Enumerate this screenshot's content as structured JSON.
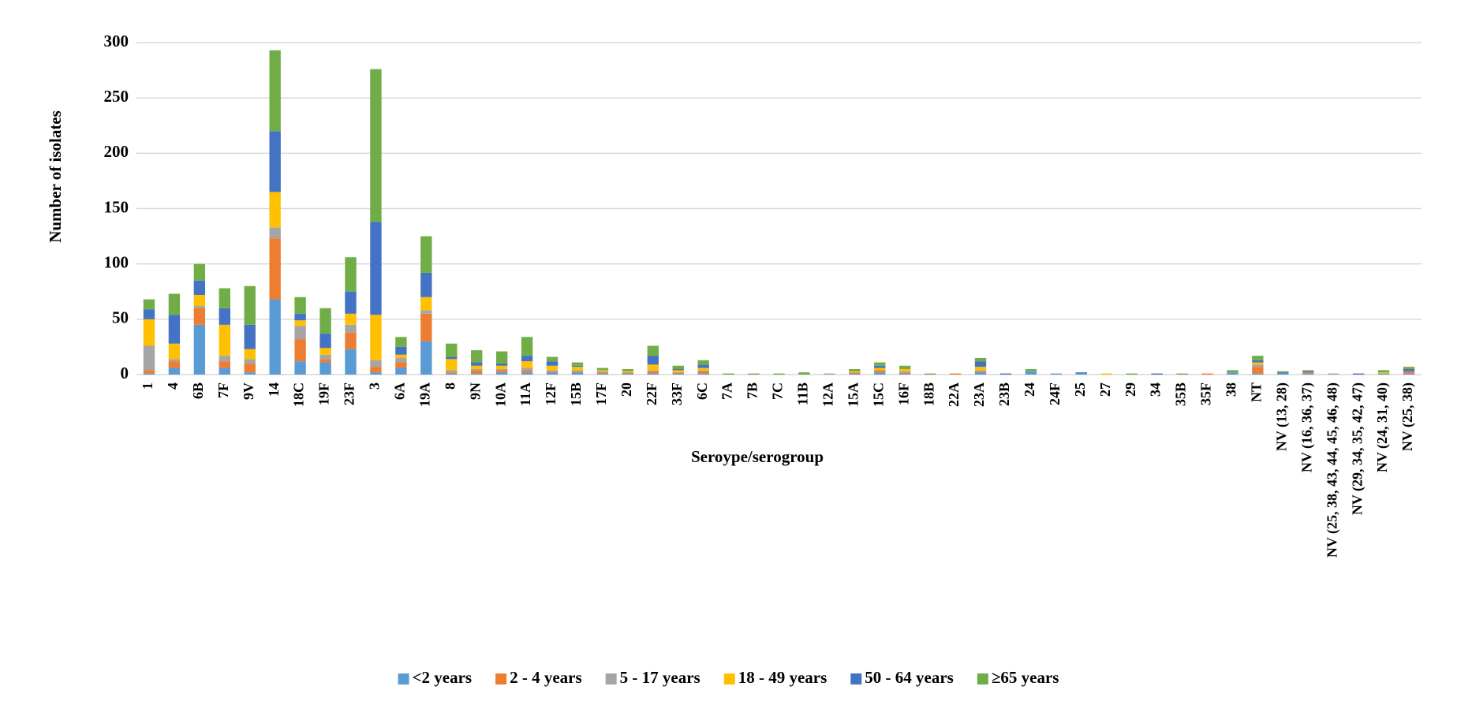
{
  "chart_data": {
    "type": "bar",
    "stacked": true,
    "x_label": "Seroype/serogroup",
    "y_label": "Number  of isolates",
    "categories": [
      "1",
      "4",
      "6B",
      "7F",
      "9V",
      "14",
      "18C",
      "19F",
      "23F",
      "3",
      "6A",
      "19A",
      "8",
      "9N",
      "10A",
      "11A",
      "12F",
      "15B",
      "17F",
      "20",
      "22F",
      "33F",
      "6C",
      "7A",
      "7B",
      "7C",
      "11B",
      "12A",
      "15A",
      "15C",
      "16F",
      "18B",
      "22A",
      "23A",
      "23B",
      "24",
      "24F",
      "25",
      "27",
      "29",
      "34",
      "35B",
      "35F",
      "38",
      "NT",
      "NV (13, 28)",
      "NV (16, 36, 37)",
      "NV (25, 38, 43, 44, 45, 46, 48)",
      "NV (29, 34, 35, 42, 47)",
      "NV (24, 31, 40)",
      "NV (25, 38)"
    ],
    "series": [
      {
        "name": "<2 years",
        "color": "#5b9bd5",
        "values": [
          1,
          6,
          45,
          6,
          2,
          68,
          12,
          11,
          23,
          2,
          6,
          30,
          1,
          1,
          2,
          2,
          2,
          2,
          1,
          1,
          1,
          1,
          1,
          0,
          0,
          0,
          0,
          0,
          1,
          2,
          1,
          0,
          0,
          2,
          0,
          3,
          1,
          1,
          0,
          0,
          0,
          0,
          0,
          2,
          1,
          1,
          1,
          0,
          0,
          1,
          1
        ]
      },
      {
        "name": "2 - 4 years",
        "color": "#ed7d31",
        "values": [
          3,
          6,
          15,
          6,
          8,
          55,
          20,
          3,
          15,
          5,
          5,
          25,
          1,
          3,
          2,
          2,
          1,
          1,
          1,
          1,
          2,
          1,
          2,
          0,
          0,
          0,
          0,
          0,
          1,
          2,
          1,
          0,
          1,
          1,
          0,
          0,
          0,
          0,
          0,
          0,
          0,
          0,
          1,
          0,
          6,
          0,
          1,
          0,
          0,
          0,
          2
        ]
      },
      {
        "name": "5 - 17 years",
        "color": "#a5a5a5",
        "values": [
          22,
          2,
          2,
          5,
          4,
          10,
          12,
          4,
          7,
          6,
          4,
          3,
          2,
          1,
          1,
          2,
          1,
          1,
          1,
          0,
          1,
          0,
          1,
          0,
          0,
          0,
          0,
          1,
          0,
          0,
          1,
          0,
          0,
          1,
          0,
          0,
          0,
          0,
          0,
          0,
          0,
          0,
          0,
          0,
          2,
          0,
          0,
          1,
          0,
          0,
          0
        ]
      },
      {
        "name": "18 - 49 years",
        "color": "#ffc000",
        "values": [
          24,
          14,
          10,
          28,
          9,
          32,
          5,
          6,
          10,
          41,
          3,
          12,
          10,
          3,
          3,
          6,
          4,
          3,
          1,
          1,
          5,
          2,
          2,
          0,
          0,
          0,
          0,
          0,
          1,
          2,
          2,
          0,
          0,
          3,
          0,
          0,
          0,
          0,
          1,
          0,
          0,
          0,
          0,
          0,
          2,
          0,
          0,
          0,
          0,
          1,
          0
        ]
      },
      {
        "name": "50 - 64 years",
        "color": "#4472c4",
        "values": [
          9,
          26,
          13,
          15,
          22,
          55,
          6,
          13,
          20,
          84,
          7,
          22,
          2,
          3,
          2,
          5,
          4,
          1,
          0,
          0,
          8,
          1,
          3,
          0,
          0,
          0,
          0,
          0,
          0,
          2,
          0,
          0,
          0,
          5,
          1,
          0,
          0,
          1,
          0,
          0,
          1,
          0,
          0,
          0,
          2,
          1,
          1,
          0,
          1,
          0,
          2
        ]
      },
      {
        "name": "≥65 years",
        "color": "#70ad47",
        "values": [
          9,
          19,
          15,
          18,
          35,
          73,
          15,
          23,
          31,
          138,
          9,
          33,
          12,
          11,
          11,
          17,
          4,
          3,
          2,
          2,
          9,
          3,
          4,
          1,
          1,
          1,
          2,
          0,
          2,
          3,
          3,
          1,
          0,
          3,
          0,
          2,
          0,
          0,
          0,
          1,
          0,
          1,
          0,
          2,
          4,
          1,
          1,
          0,
          0,
          2,
          2
        ]
      }
    ],
    "ylim": [
      0,
      300
    ],
    "yticks": [
      0,
      50,
      100,
      150,
      200,
      250,
      300
    ],
    "grid": true,
    "legend": "bottom"
  }
}
